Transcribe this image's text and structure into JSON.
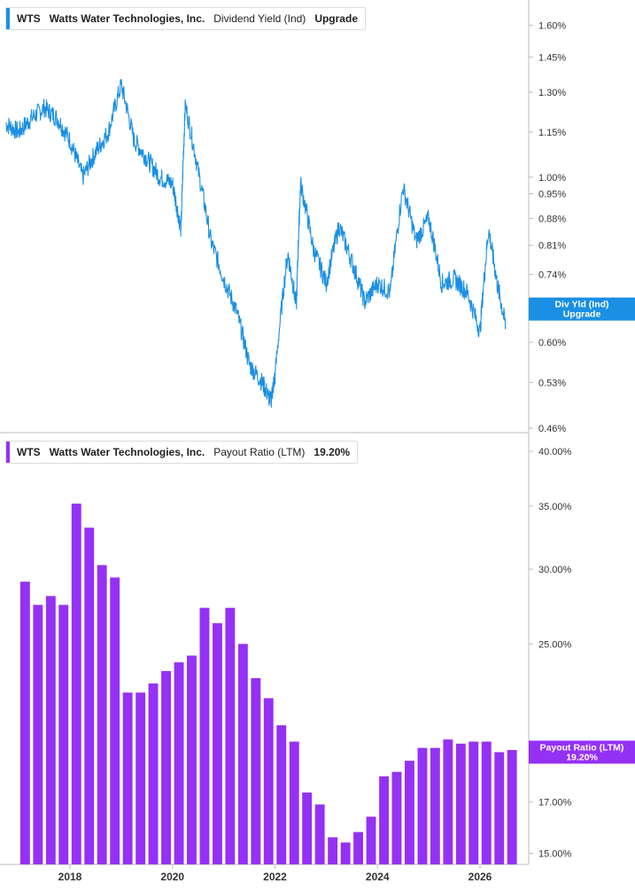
{
  "colors": {
    "yield": "#1a8fe3",
    "payout": "#9431f5",
    "axis": "#bbbbbb",
    "text": "#333333"
  },
  "legends": [
    {
      "ticker": "WTS",
      "company": "Watts Water Technologies, Inc.",
      "metric": "Dividend Yield (Ind)",
      "extra": "Upgrade"
    },
    {
      "ticker": "WTS",
      "company": "Watts Water Technologies, Inc.",
      "metric": "Payout Ratio (LTM)",
      "extra": "19.20%"
    }
  ],
  "x_axis_labels": [
    "2018",
    "2020",
    "2022",
    "2024",
    "2026"
  ],
  "chart_data": [
    {
      "type": "line",
      "title": "",
      "series": [
        {
          "name": "Dividend Yield (Ind)",
          "x": [
            "2016-10",
            "2017-01",
            "2017-04",
            "2017-07",
            "2017-10",
            "2018-01",
            "2018-04",
            "2018-07",
            "2018-10",
            "2019-01",
            "2019-04",
            "2019-07",
            "2019-10",
            "2020-01",
            "2020-03",
            "2020-04",
            "2020-07",
            "2020-10",
            "2021-01",
            "2021-04",
            "2021-07",
            "2021-10",
            "2021-12",
            "2022-01",
            "2022-04",
            "2022-06",
            "2022-07",
            "2022-10",
            "2023-01",
            "2023-04",
            "2023-07",
            "2023-10",
            "2024-01",
            "2024-04",
            "2024-07",
            "2024-10",
            "2025-01",
            "2025-04",
            "2025-07",
            "2025-10",
            "2026-01",
            "2026-03",
            "2026-05",
            "2026-07"
          ],
          "y": [
            1.18,
            1.15,
            1.2,
            1.24,
            1.2,
            1.12,
            1.0,
            1.08,
            1.15,
            1.33,
            1.12,
            1.06,
            1.0,
            0.98,
            0.85,
            1.25,
            1.02,
            0.82,
            0.73,
            0.66,
            0.56,
            0.53,
            0.5,
            0.54,
            0.79,
            0.67,
            0.98,
            0.8,
            0.72,
            0.86,
            0.77,
            0.68,
            0.72,
            0.7,
            0.97,
            0.82,
            0.88,
            0.72,
            0.73,
            0.7,
            0.62,
            0.85,
            0.72,
            0.63
          ]
        }
      ],
      "y_tick_labels": [
        "1.60%",
        "1.45%",
        "1.30%",
        "1.15%",
        "1.00%",
        "0.95%",
        "0.88%",
        "0.81%",
        "0.74%",
        "0.60%",
        "0.53%",
        "0.46%"
      ],
      "y_ticks": [
        1.6,
        1.45,
        1.3,
        1.15,
        1.0,
        0.95,
        0.88,
        0.81,
        0.74,
        0.6,
        0.53,
        0.46
      ],
      "ylim": [
        0.46,
        1.72
      ],
      "y_scale": "log",
      "badge": {
        "line1": "Div Yld (Ind)",
        "line2": "Upgrade",
        "value": 0.665
      }
    },
    {
      "type": "bar",
      "title": "",
      "series": [
        {
          "name": "Payout Ratio (LTM)",
          "x": [
            "2017-Q1",
            "2017-Q2",
            "2017-Q3",
            "2017-Q4",
            "2018-Q1",
            "2018-Q2",
            "2018-Q3",
            "2018-Q4",
            "2019-Q1",
            "2019-Q2",
            "2019-Q3",
            "2019-Q4",
            "2020-Q1",
            "2020-Q2",
            "2020-Q3",
            "2020-Q4",
            "2021-Q1",
            "2021-Q2",
            "2021-Q3",
            "2021-Q4",
            "2022-Q1",
            "2022-Q2",
            "2022-Q3",
            "2022-Q4",
            "2023-Q1",
            "2023-Q2",
            "2023-Q3",
            "2023-Q4",
            "2024-Q1",
            "2024-Q2",
            "2024-Q3",
            "2024-Q4",
            "2025-Q1",
            "2025-Q2",
            "2025-Q3",
            "2025-Q4",
            "2026-Q1",
            "2026-Q2",
            "2026-Q3"
          ],
          "values": [
            29.1,
            27.5,
            28.1,
            27.5,
            35.2,
            33.2,
            30.3,
            29.4,
            22.2,
            22.2,
            22.7,
            23.4,
            23.9,
            24.3,
            27.3,
            26.3,
            27.3,
            25.0,
            23.0,
            21.9,
            20.5,
            19.7,
            17.4,
            16.9,
            15.6,
            15.4,
            15.8,
            16.4,
            18.1,
            18.3,
            18.8,
            19.4,
            19.4,
            19.8,
            19.6,
            19.7,
            19.7,
            19.2,
            19.3
          ]
        }
      ],
      "y_tick_labels": [
        "40.00%",
        "35.00%",
        "30.00%",
        "25.00%",
        "17.00%",
        "15.00%"
      ],
      "y_ticks": [
        40,
        35,
        30,
        25,
        17,
        15
      ],
      "ylim": [
        14.6,
        41.5
      ],
      "y_scale": "log",
      "badge": {
        "line1": "Payout Ratio (LTM)",
        "line2": "19.20%",
        "value": 19.2
      }
    }
  ]
}
